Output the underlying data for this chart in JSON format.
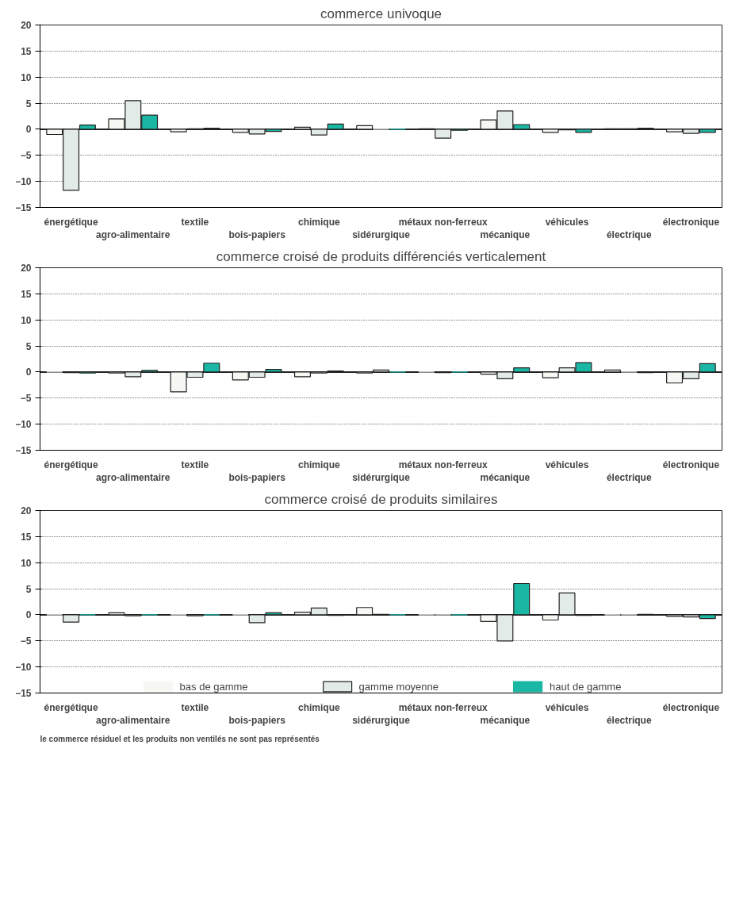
{
  "chart_data": [
    {
      "type": "bar",
      "title": "commerce univoque",
      "categories": [
        "énergétique",
        "agro-alimentaire",
        "textile",
        "bois-papiers",
        "chimique",
        "sidérurgique",
        "métaux non-ferreux",
        "mécanique",
        "véhicules",
        "électrique",
        "électronique"
      ],
      "series": [
        {
          "color": "#f7f7f3",
          "values": [
            -1.0,
            2.0,
            -0.5,
            -0.6,
            0.4,
            0.7,
            0.1,
            1.8,
            -0.6,
            0.1,
            -0.5
          ]
        },
        {
          "color": "#e2ebe8",
          "values": [
            -11.7,
            5.5,
            0.1,
            -0.9,
            -1.1,
            0.0,
            -1.7,
            3.5,
            -0.1,
            0.1,
            -0.8
          ]
        },
        {
          "color": "#1ab8a4",
          "values": [
            0.8,
            2.7,
            0.2,
            -0.4,
            1.0,
            0.0,
            -0.2,
            0.9,
            -0.6,
            0.2,
            -0.6
          ]
        }
      ],
      "ylim": [
        -15,
        20
      ],
      "yticks": [
        -15,
        -10,
        -5,
        0,
        5,
        10,
        15,
        20
      ],
      "grid": "y",
      "ref_lines": [
        {
          "axis": "y",
          "value": 0
        }
      ]
    },
    {
      "type": "bar",
      "title": "commerce croisé de produits différenciés verticalement",
      "categories": [
        "énergétique",
        "agro-alimentaire",
        "textile",
        "bois-papiers",
        "chimique",
        "sidérurgique",
        "métaux non-ferreux",
        "mécanique",
        "véhicules",
        "électrique",
        "électronique"
      ],
      "series": [
        {
          "color": "#f7f7f3",
          "values": [
            0.0,
            -0.2,
            -3.8,
            -1.5,
            -0.9,
            -0.2,
            0.0,
            -0.4,
            -1.1,
            0.4,
            -2.1
          ]
        },
        {
          "color": "#e2ebe8",
          "values": [
            -0.1,
            -0.9,
            -1.0,
            -1.0,
            -0.2,
            0.4,
            -0.1,
            -1.3,
            0.8,
            0.0,
            -1.3
          ]
        },
        {
          "color": "#1ab8a4",
          "values": [
            -0.2,
            0.3,
            1.7,
            0.5,
            0.2,
            0.0,
            0.0,
            0.8,
            1.8,
            -0.1,
            1.6
          ]
        }
      ],
      "ylim": [
        -15,
        20
      ],
      "yticks": [
        -15,
        -10,
        -5,
        0,
        5,
        10,
        15,
        20
      ],
      "grid": "y",
      "ref_lines": [
        {
          "axis": "y",
          "value": 0
        }
      ]
    },
    {
      "type": "bar",
      "title": "commerce croisé de produits similaires",
      "categories": [
        "énergétique",
        "agro-alimentaire",
        "textile",
        "bois-papiers",
        "chimique",
        "sidérurgique",
        "métaux non-ferreux",
        "mécanique",
        "véhicules",
        "électrique",
        "électronique"
      ],
      "series": [
        {
          "name": "bas de gamme",
          "color": "#f7f7f3",
          "values": [
            0.0,
            0.4,
            0.0,
            0.0,
            0.5,
            1.4,
            0.0,
            -1.3,
            -1.0,
            0.0,
            -0.3
          ]
        },
        {
          "name": "gamme moyenne",
          "color": "#e2ebe8",
          "values": [
            -1.4,
            -0.2,
            -0.2,
            -1.5,
            1.3,
            0.1,
            0.0,
            -5.0,
            4.2,
            0.0,
            -0.4
          ]
        },
        {
          "name": "haut de gamme",
          "color": "#1ab8a4",
          "values": [
            0.0,
            0.0,
            0.0,
            0.4,
            -0.1,
            0.0,
            0.0,
            6.0,
            -0.1,
            0.1,
            -0.7
          ]
        }
      ],
      "ylim": [
        -15,
        20
      ],
      "yticks": [
        -15,
        -10,
        -5,
        0,
        5,
        10,
        15,
        20
      ],
      "grid": "y",
      "ref_lines": [
        {
          "axis": "y",
          "value": 0
        }
      ],
      "legend": "bottom",
      "annotations": [
        "le commerce résiduel et les produits non ventilés ne sont pas représentés"
      ]
    }
  ]
}
